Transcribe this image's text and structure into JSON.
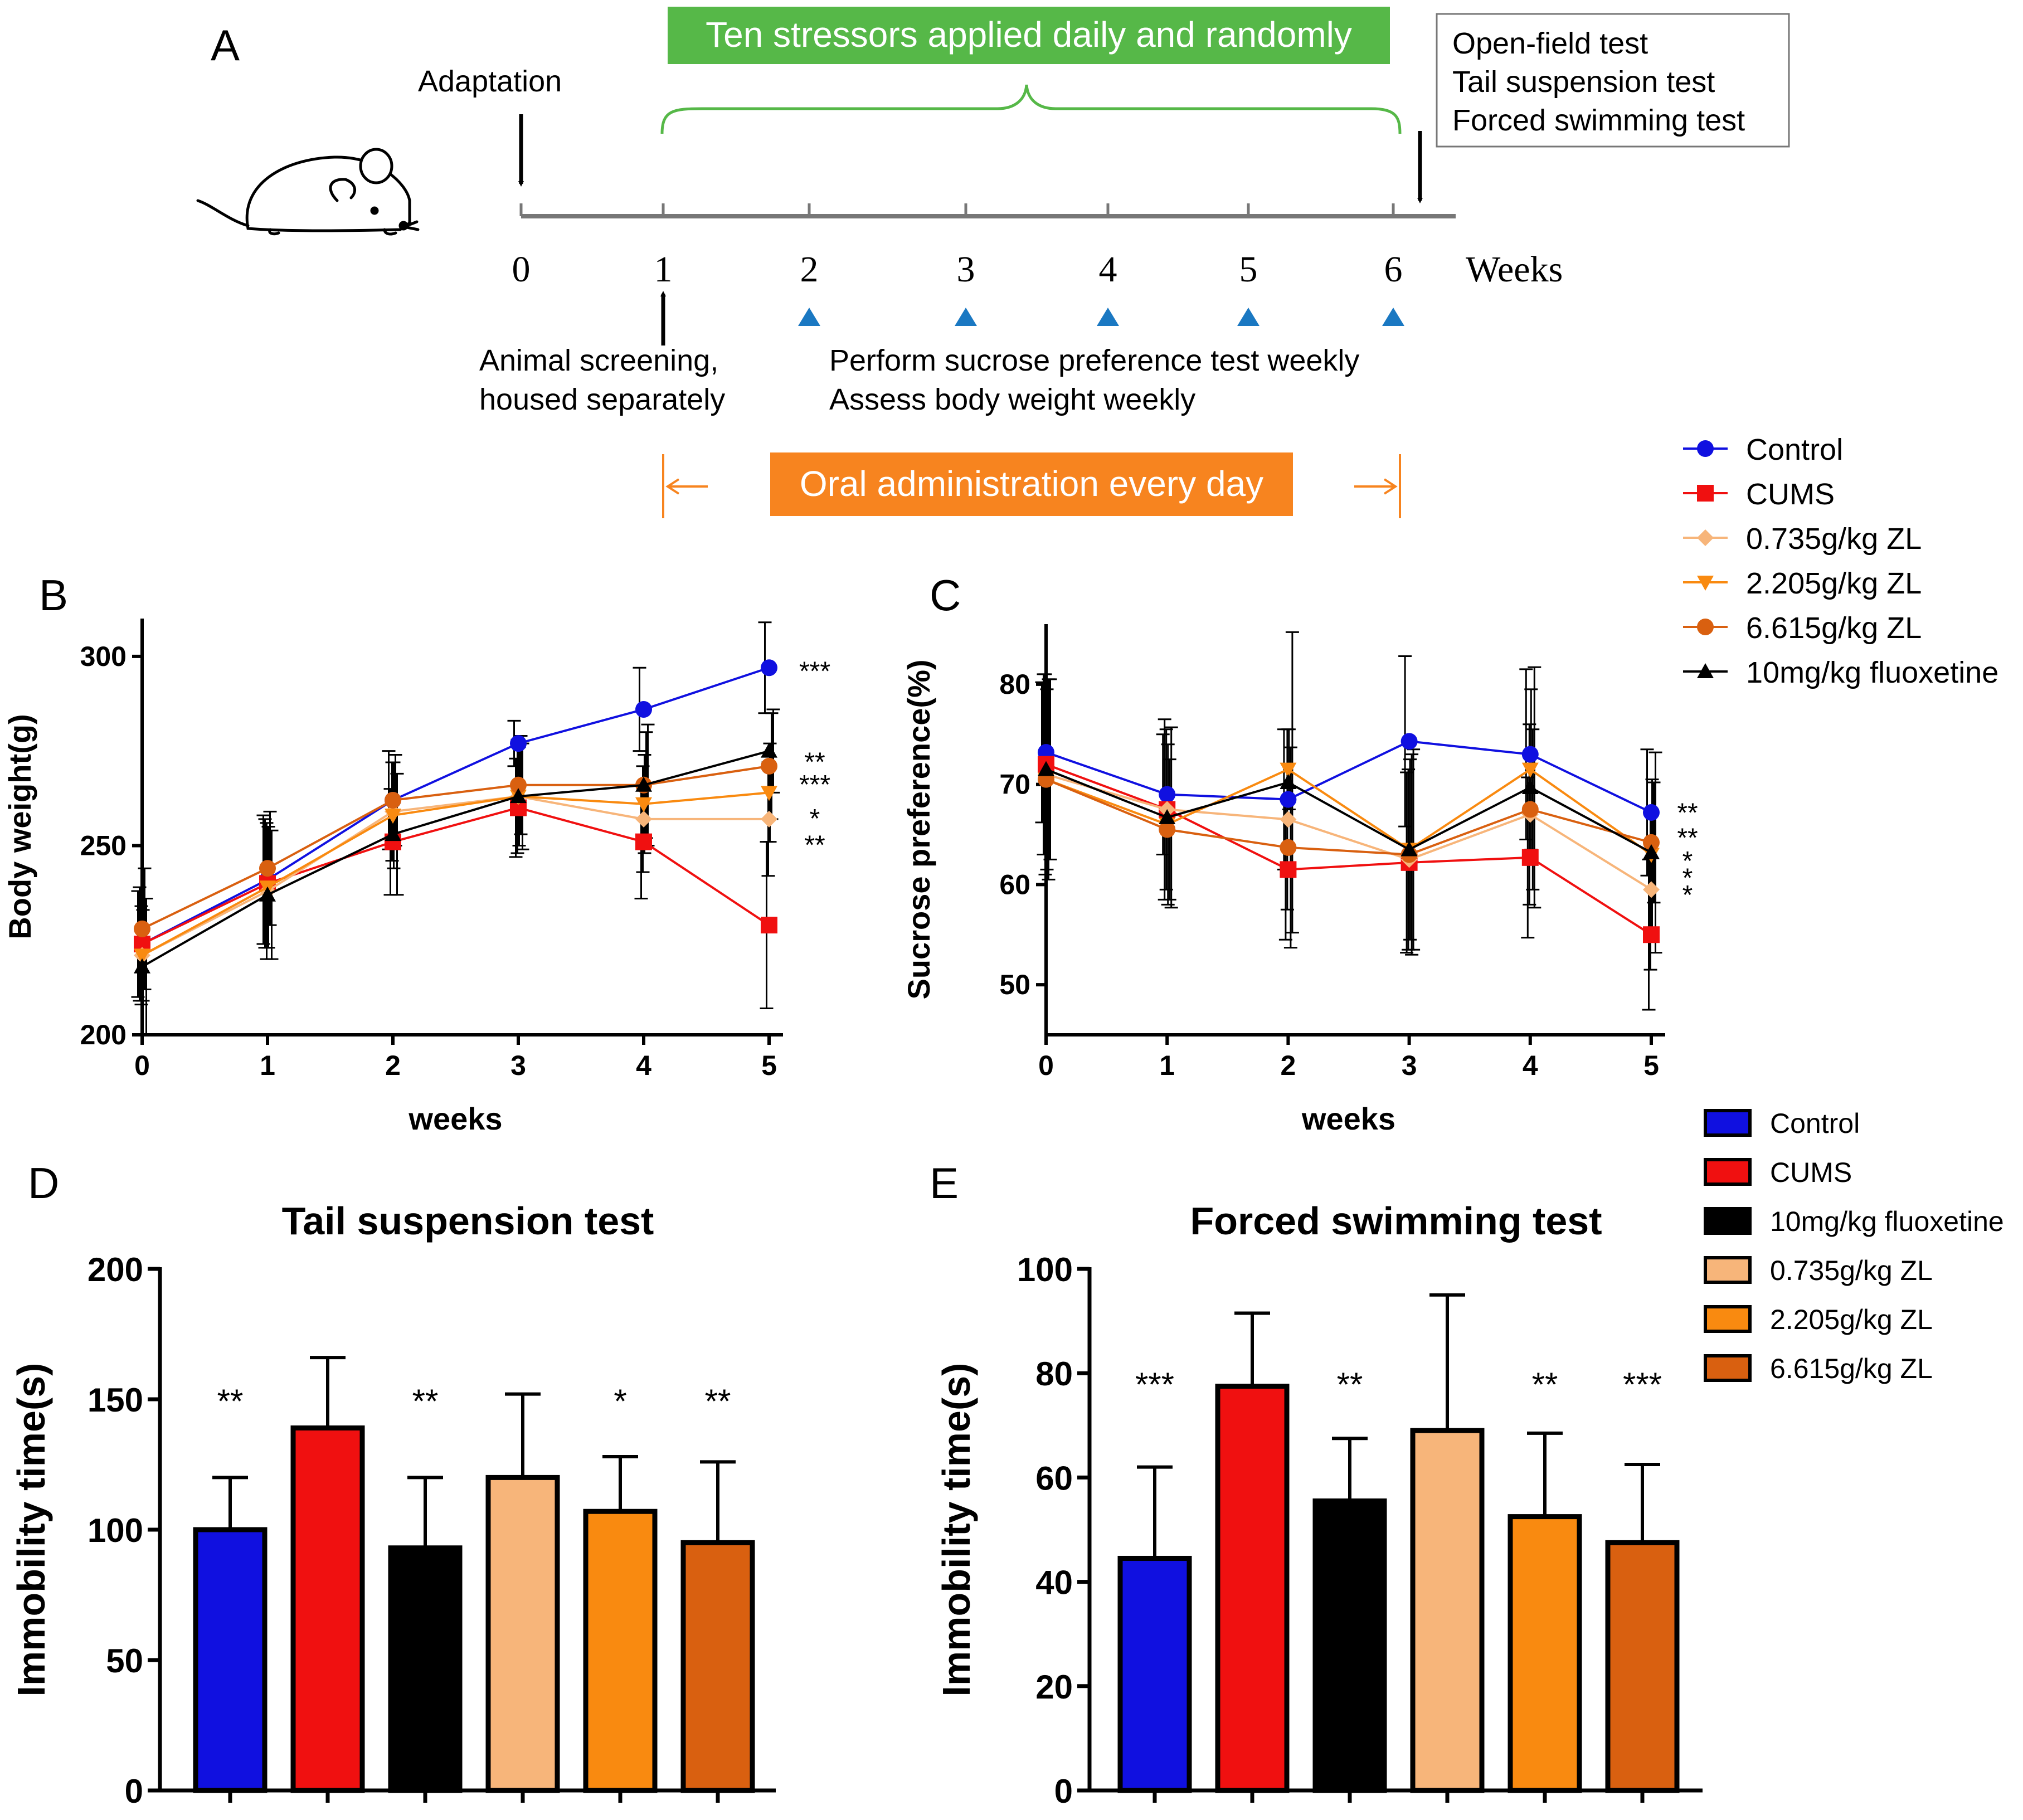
{
  "panel_labels": {
    "a": "A",
    "b": "B",
    "c": "C",
    "d": "D",
    "e": "E"
  },
  "timeline": {
    "stressors_banner": "Ten stressors applied daily and randomly",
    "adaptation": "Adaptation",
    "tests": [
      "Open-field test",
      "Tail suspension test",
      "Forced swimming test"
    ],
    "weeks": [
      "0",
      "1",
      "2",
      "3",
      "4",
      "5",
      "6"
    ],
    "weeks_unit": "Weeks",
    "screening": [
      "Animal screening,",
      "housed separately"
    ],
    "weekly": [
      "Perform sucrose preference test weekly",
      "Assess body weight weekly"
    ],
    "oral": "Oral administration every day"
  },
  "colors": {
    "control": "#1010e0",
    "cums": "#f01010",
    "zl_low": "#f7b57a",
    "zl_mid": "#f98a10",
    "zl_high": "#d96010",
    "fluoxetine": "#000000",
    "green": "#56b848",
    "orange_banner": "#f7841f",
    "triangle": "#1a78c2"
  },
  "line_legend": [
    "Control",
    "CUMS",
    "0.735g/kg ZL",
    "2.205g/kg ZL",
    "6.615g/kg ZL",
    "10mg/kg fluoxetine"
  ],
  "bar_legend": [
    "Control",
    "CUMS",
    "10mg/kg fluoxetine",
    "0.735g/kg ZL",
    "2.205g/kg ZL",
    "6.615g/kg ZL"
  ],
  "chart_data": [
    {
      "id": "B",
      "type": "line",
      "title": "",
      "xlabel": "weeks",
      "ylabel": "Body weight(g)",
      "x": [
        0,
        1,
        2,
        3,
        4,
        5
      ],
      "xlim": [
        0,
        5
      ],
      "ylim": [
        200,
        310
      ],
      "yticks": [
        200,
        250,
        300
      ],
      "series": [
        {
          "name": "Control",
          "key": "control",
          "marker": "circle",
          "values": [
            224,
            241,
            262,
            277,
            286,
            297
          ],
          "err": [
            14,
            17,
            13,
            6,
            11,
            12
          ]
        },
        {
          "name": "CUMS",
          "key": "cums",
          "marker": "square",
          "values": [
            224,
            240,
            251,
            260,
            251,
            229
          ],
          "err": [
            15,
            17,
            14,
            13,
            15,
            22
          ]
        },
        {
          "name": "0.735g/kg ZL",
          "key": "zl_low",
          "marker": "diamond",
          "values": [
            221,
            238,
            259,
            263,
            257,
            257
          ],
          "err": [
            13,
            18,
            13,
            15,
            14,
            15
          ]
        },
        {
          "name": "2.205g/kg ZL",
          "key": "zl_mid",
          "marker": "triangle-down",
          "values": [
            221,
            239,
            258,
            263,
            261,
            264
          ],
          "err": [
            12,
            16,
            14,
            13,
            13,
            13
          ]
        },
        {
          "name": "6.615g/kg ZL",
          "key": "zl_high",
          "marker": "circle",
          "values": [
            228,
            244,
            262,
            266,
            266,
            271
          ],
          "err": [
            16,
            15,
            12,
            13,
            14,
            14
          ]
        },
        {
          "name": "10mg/kg fluoxetine",
          "key": "fluoxetine",
          "marker": "triangle-up",
          "values": [
            218,
            237,
            253,
            263,
            266,
            275
          ],
          "err": [
            18,
            17,
            16,
            14,
            16,
            11
          ]
        }
      ],
      "annotations": [
        {
          "text": "***",
          "y": 297
        },
        {
          "text": "**",
          "y": 273
        },
        {
          "text": "***",
          "y": 267
        },
        {
          "text": "*",
          "y": 258
        },
        {
          "text": "**",
          "y": 251
        }
      ]
    },
    {
      "id": "C",
      "type": "line",
      "title": "",
      "xlabel": "weeks",
      "ylabel": "Sucrose preference(%)",
      "x": [
        0,
        1,
        2,
        3,
        4,
        5
      ],
      "xlim": [
        0,
        5
      ],
      "ylim": [
        45,
        86
      ],
      "yticks": [
        50,
        60,
        70,
        80
      ],
      "series": [
        {
          "name": "Control",
          "key": "control",
          "marker": "circle",
          "values": [
            73.2,
            69,
            68.5,
            74.3,
            73,
            67.2
          ],
          "err": [
            7,
            6,
            7,
            8.5,
            8.5,
            6.3
          ]
        },
        {
          "name": "CUMS",
          "key": "cums",
          "marker": "square",
          "values": [
            72,
            67.5,
            61.5,
            62.2,
            62.7,
            55
          ],
          "err": [
            9,
            9,
            7,
            9,
            8,
            7.5
          ]
        },
        {
          "name": "0.735g/kg ZL",
          "key": "zl_low",
          "marker": "diamond",
          "values": [
            71,
            67.5,
            66.5,
            62.5,
            67,
            59.5
          ],
          "err": [
            10,
            8,
            9,
            9,
            9,
            8
          ]
        },
        {
          "name": "2.205g/kg ZL",
          "key": "zl_mid",
          "marker": "triangle-down",
          "values": [
            70.5,
            66,
            71.5,
            63.5,
            71.5,
            63
          ],
          "err": [
            9,
            8,
            4,
            9,
            8,
            7.5
          ]
        },
        {
          "name": "6.615g/kg ZL",
          "key": "zl_high",
          "marker": "circle",
          "values": [
            70.5,
            65.5,
            63.7,
            63,
            67.5,
            64.2
          ],
          "err": [
            10,
            7,
            10,
            10,
            8,
            6
          ]
        },
        {
          "name": "10mg/kg fluoxetine",
          "key": "fluoxetine",
          "marker": "triangle-up",
          "values": [
            71.5,
            66.7,
            70.2,
            63.5,
            69.7,
            63.2
          ],
          "err": [
            9,
            9,
            15,
            10,
            12,
            10
          ]
        }
      ],
      "annotations": [
        {
          "text": "**",
          "y": 67.5
        },
        {
          "text": "**",
          "y": 65
        },
        {
          "text": "*",
          "y": 62.7
        },
        {
          "text": "*",
          "y": 61
        },
        {
          "text": "*",
          "y": 59.3
        }
      ]
    },
    {
      "id": "D",
      "type": "bar",
      "title": "Tail suspension test",
      "xlabel": "",
      "ylabel": "Immobility time(s)",
      "categories": [
        "Control",
        "CUMS",
        "10mg/kg fluoxetine",
        "0.735g/kg ZL",
        "2.205g/kg ZL",
        "6.615g/kg ZL"
      ],
      "keys": [
        "control",
        "cums",
        "fluoxetine",
        "zl_low",
        "zl_mid",
        "zl_high"
      ],
      "values": [
        100,
        139,
        93,
        120,
        107,
        95
      ],
      "err": [
        20,
        27,
        27,
        32,
        21,
        31
      ],
      "significance": [
        "**",
        "",
        "**",
        "",
        "*",
        "**"
      ],
      "ylim": [
        0,
        200
      ],
      "yticks": [
        0,
        50,
        100,
        150,
        200
      ]
    },
    {
      "id": "E",
      "type": "bar",
      "title": "Forced swimming test",
      "xlabel": "",
      "ylabel": "Immobility time(s)",
      "categories": [
        "Control",
        "CUMS",
        "10mg/kg fluoxetine",
        "0.735g/kg ZL",
        "2.205g/kg ZL",
        "6.615g/kg ZL"
      ],
      "keys": [
        "control",
        "cums",
        "fluoxetine",
        "zl_low",
        "zl_mid",
        "zl_high"
      ],
      "values": [
        44.5,
        77.5,
        55.5,
        69,
        52.5,
        47.5
      ],
      "err": [
        17.5,
        14,
        12,
        26,
        16,
        15
      ],
      "significance": [
        "***",
        "",
        "**",
        "",
        "**",
        "***"
      ],
      "ylim": [
        0,
        100
      ],
      "yticks": [
        0,
        20,
        40,
        60,
        80,
        100
      ]
    }
  ]
}
